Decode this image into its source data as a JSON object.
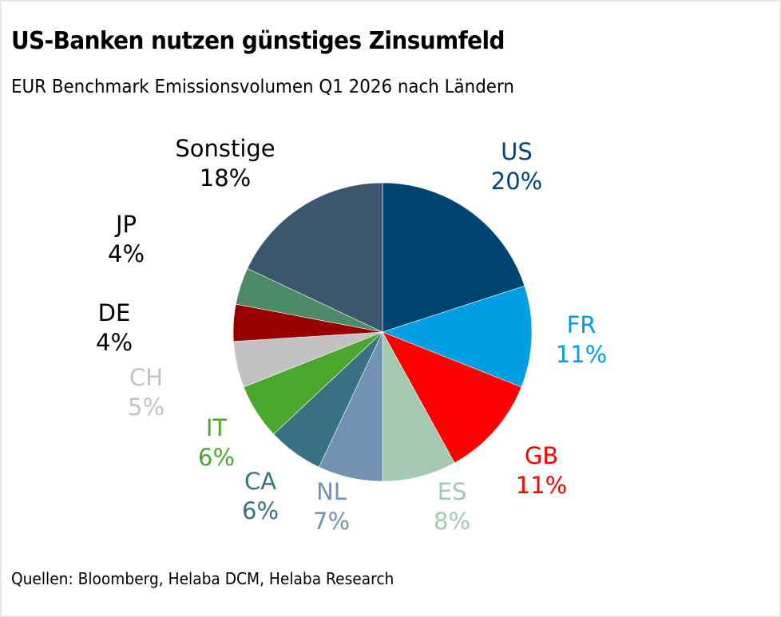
{
  "header": {
    "title": "US-Banken nutzen günstiges Zinsumfeld",
    "subtitle": "EUR Benchmark Emissionsvolumen Q1 2026 nach Ländern"
  },
  "footer": {
    "source": "Quellen: Bloomberg, Helaba DCM, Helaba Research"
  },
  "chart_data": {
    "type": "pie",
    "title": "US-Banken nutzen günstiges Zinsumfeld",
    "subtitle": "EUR Benchmark Emissionsvolumen Q1 2026 nach Ländern",
    "unit": "%",
    "start": "12 o'clock, clockwise",
    "slices": [
      {
        "label": "US",
        "value": 20,
        "display": "20%",
        "color": "#004572",
        "label_color": "#004572"
      },
      {
        "label": "FR",
        "value": 11,
        "display": "11%",
        "color": "#009FE3",
        "label_color": "#009FE3"
      },
      {
        "label": "GB",
        "value": 11,
        "display": "11%",
        "color": "#FF0000",
        "label_color": "#FF0000"
      },
      {
        "label": "ES",
        "value": 8,
        "display": "8%",
        "color": "#A3C9B1",
        "label_color": "#A3C9B1"
      },
      {
        "label": "NL",
        "value": 7,
        "display": "7%",
        "color": "#7192B0",
        "label_color": "#7192B0"
      },
      {
        "label": "CA",
        "value": 6,
        "display": "6%",
        "color": "#387182",
        "label_color": "#387182"
      },
      {
        "label": "IT",
        "value": 6,
        "display": "6%",
        "color": "#4BA72E",
        "label_color": "#4BA72E"
      },
      {
        "label": "CH",
        "value": 5,
        "display": "5%",
        "color": "#C2C2C2",
        "label_color": "#C2C2C2"
      },
      {
        "label": "DE",
        "value": 4,
        "display": "4%",
        "color": "#990000",
        "label_color": "#000000"
      },
      {
        "label": "JP",
        "value": 4,
        "display": "4%",
        "color": "#4D8A68",
        "label_color": "#000000"
      },
      {
        "label": "Sonstige",
        "value": 18,
        "display": "18%",
        "color": "#3D5670",
        "label_color": "#000000"
      }
    ]
  }
}
